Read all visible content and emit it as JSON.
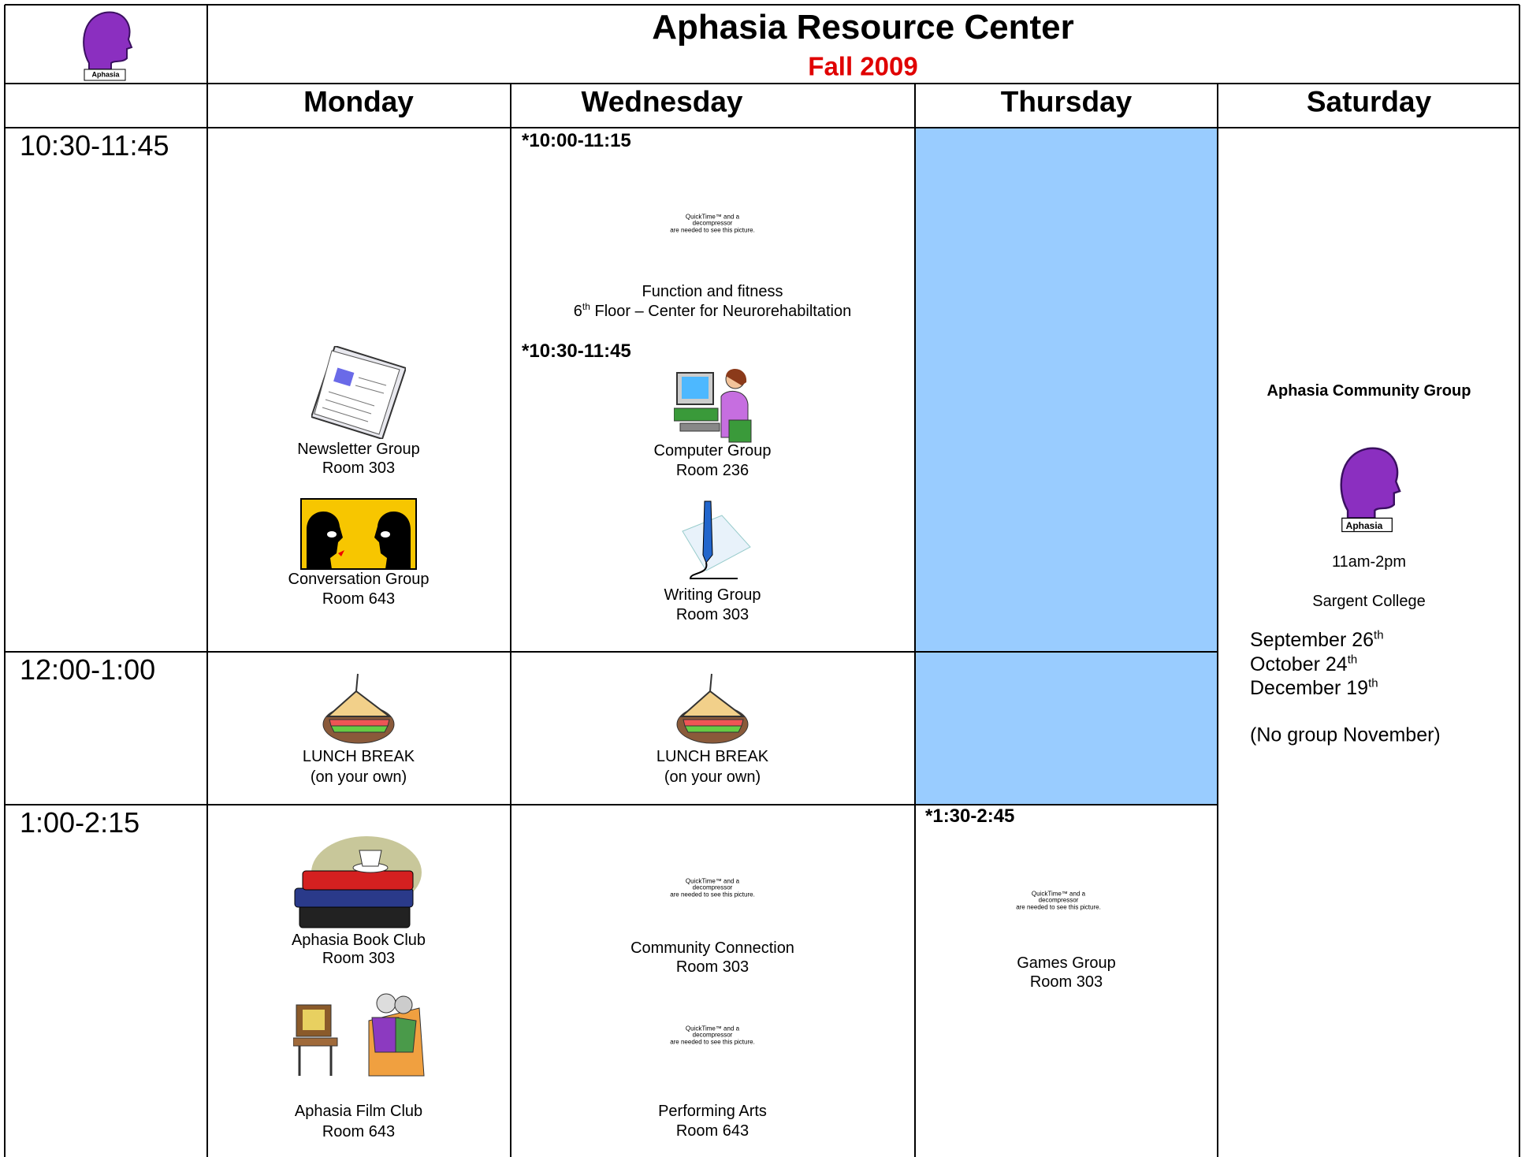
{
  "header": {
    "logo_label": "Aphasia",
    "title": "Aphasia Resource Center",
    "subtitle": "Fall 2009"
  },
  "days": [
    "Monday",
    "Wednesday",
    "Thursday",
    "Saturday"
  ],
  "times": [
    "10:30-11:45",
    "12:00-1:00",
    "1:00-2:15"
  ],
  "quicktime_notice": [
    "QuickTime™ and a",
    "decompressor",
    "are needed to see this picture."
  ],
  "monday": {
    "morning": [
      {
        "name": "Newsletter Group",
        "room": "Room 303"
      },
      {
        "name": "Conversation Group",
        "room": "Room 643"
      }
    ],
    "lunch": {
      "name": "LUNCH BREAK",
      "note": "(on your own)"
    },
    "afternoon": [
      {
        "name": "Aphasia Book Club",
        "room": "Room 303"
      },
      {
        "name": "Aphasia Film Club",
        "room": "Room 643"
      }
    ]
  },
  "wednesday": {
    "morning": [
      {
        "time": "*10:00-11:15",
        "name": "Function and fitness",
        "floor_number": "6",
        "floor_suffix": "th",
        "location": "Floor – Center for Neurorehabiltation"
      },
      {
        "time": "*10:30-11:45",
        "name": "Computer Group",
        "room": "Room 236"
      },
      {
        "name": "Writing Group",
        "room": "Room 303"
      }
    ],
    "lunch": {
      "name": "LUNCH BREAK",
      "note": "(on your own)"
    },
    "afternoon": [
      {
        "name": "Community Connection",
        "room": "Room 303"
      },
      {
        "name": "Performing Arts",
        "room": "Room 643"
      }
    ]
  },
  "thursday": {
    "afternoon": {
      "time": "*1:30-2:45",
      "name": "Games Group",
      "room": "Room 303"
    }
  },
  "saturday": {
    "title": "Aphasia Community Group",
    "logo_label": "Aphasia",
    "hours": "11am-2pm",
    "location": "Sargent College",
    "dates": [
      {
        "date": "September 26",
        "suffix": "th"
      },
      {
        "date": "October 24",
        "suffix": "th"
      },
      {
        "date": "December 19",
        "suffix": "th"
      }
    ],
    "note": "(No group November)"
  }
}
